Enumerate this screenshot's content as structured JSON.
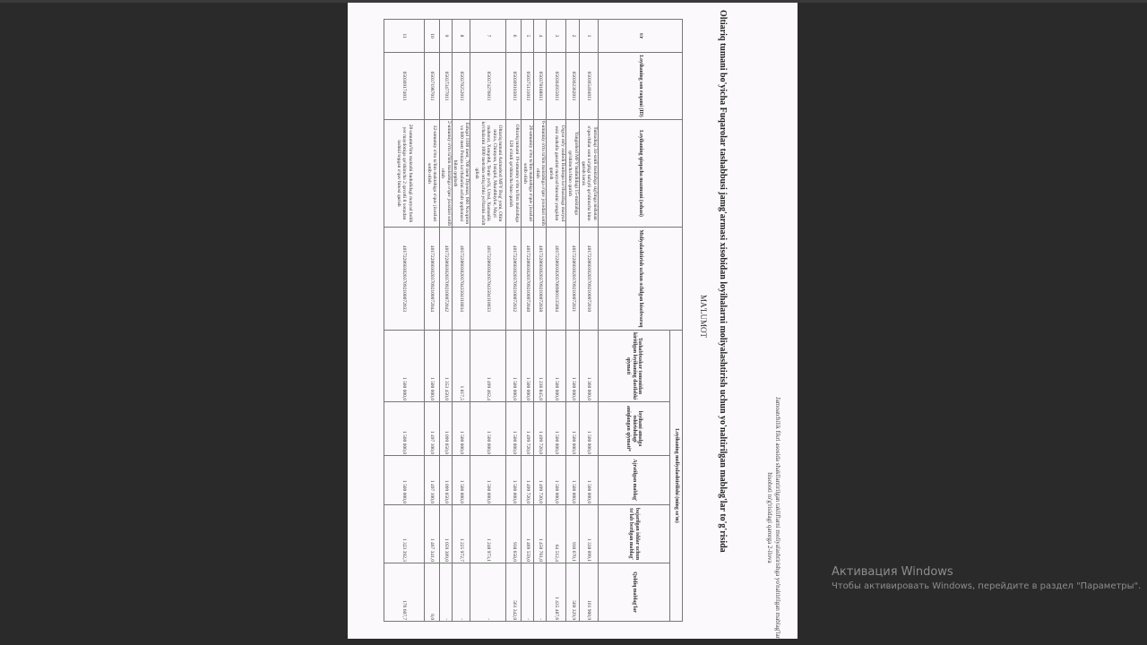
{
  "document": {
    "note": "Jamoatchilik fikri asosida shakllantirilgan takliflarni moliyalashtirishga yo'naltirilgan mablag'lar hisoboti to'g'risidagi qarorga 2-ilova",
    "title": "Oltiariq tumani bo'yicha Fuqarolar tashabbusi jamg'armasi xisobidan loyihalarni moliyalashtirish uchun yo'naltirilgan mablag'lar to'g'risida",
    "subtitle": "MA'LUMOT",
    "table": {
      "headers": {
        "num": "t/r",
        "id": "Loyihaning son raqami (ID)",
        "desc": "Loyihaning qisqacha mazmuni (sohasi)",
        "account": "Moliyalashtirish uchun ochilgan hisobvaraq",
        "group": "Loyihaning moliyalashtirilishi (ming so'm)",
        "initial": "Tashabbuskor tomonidan kiritilgan loyihaning dastlabki qiymati",
        "actual": "loyihani amalga oshirishdagi aniqlangan qiymati*",
        "allocated": "Ajratilgan mablag'",
        "paid": "bajarilgan ishlar uchun to'lab berilgan mablag'",
        "remaining": "Qoldiq mablag'lar"
      },
      "rows": [
        {
          "num": "1",
          "id": "050365494011",
          "desc": "Turnaduqi 34-sonli maktabga sig'imga nisbatan o'quvchilar soni ko'pligi tufayli qo'shimcha bino qurish kerak",
          "account": "401722860302037092100072010",
          "initial": "1 360 000,0",
          "actual": "1 500 000,0",
          "allocated": "1 500 000,0",
          "paid": "1 338 099,1",
          "remaining": "161 900,9"
        },
        {
          "num": "2",
          "id": "050362362011",
          "desc": "Yangiobod MFY hududidagi 15-maktabga qo'shimcha bino qurish",
          "account": "401722860302037092100072031",
          "initial": "1 500 000,0",
          "actual": "1 500 000,0",
          "allocated": "1 500 000,0",
          "paid": "930 670,1",
          "remaining": "569 329,9"
        },
        {
          "num": "3",
          "id": "050364935011",
          "desc": "Oqyar mfy xudodi Baritopa ko'chasidagi maryad eski mahalla guzarini maryad binosini yangidan qurish",
          "account": "401722860302037089801135004",
          "initial": "1 500 000,0",
          "actual": "1 500 000,0",
          "allocated": "1 500 000,0",
          "paid": "64 512,4",
          "remaining": "1 435 487,6"
        },
        {
          "num": "4",
          "id": "050378188011",
          "desc": "6-umumiy o'rta ta'lim maktabiga o'quv joxodari sotib olish",
          "account": "401722860302037092100072038",
          "initial": "1 236 845,0",
          "actual": "1 499 720,0",
          "allocated": "1 499 720,0",
          "paid": "1 450 761,0",
          "remaining": "-"
        },
        {
          "num": "5",
          "id": "050375131011",
          "desc": "26-umumiy o'rta ta'lim maktabiga o'quv jixozlari sotib olish",
          "account": "401722860302037092100072040",
          "initial": "1 500 000,0",
          "actual": "1 499 720,0",
          "allocated": "1 499 720,0",
          "paid": "1 469 559,0",
          "remaining": "-"
        },
        {
          "num": "6",
          "id": "050369103011",
          "desc": "Oltiariq tumani 19-umumiy o'rta ta'lim maktabiga 120 o'rinli qo'shimcha bino qurish",
          "account": "401722860302037092100072032",
          "initial": "1 500 000,0",
          "actual": "1 500 000,0",
          "allocated": "1 500 000,0",
          "paid": "938 658,0",
          "remaining": "561 342,0"
        },
        {
          "num": "7",
          "id": "050374276011",
          "desc": "Oltiariq tumani Azimobod MFY Bog' yoni, Olim mirza, Chimyon, Istiqlol, Murabbiylar, Mayi mahorat, Xonqobil, Temir yo'li, Urtal, Xumanlik ko'chalarini 1000 metrdan ortiq ichki yo'llarini asfalt qilish",
          "account": "401722860302037043504118033",
          "initial": "1 499 462,4",
          "actual": "1 500 000,0",
          "allocated": "1 500 000,0",
          "paid": "1 248 973,1",
          "remaining": "-"
        },
        {
          "num": "8",
          "id": "050370252011",
          "desc": "Eshqol 1100 metr, 700 metr Diyonat, 600 Navqiron va 600 metr Pokiza ko'chalarini asfalt qoplamasi bilan qoplash",
          "account": "401722860302037043504118034",
          "initial": "1 817,5",
          "actual": "1 500 000,0",
          "allocated": "1 500 000,0",
          "paid": "1 225 972,7",
          "remaining": "-"
        },
        {
          "num": "9",
          "id": "050373477011",
          "desc": "2-umumiy o'rta ta'lim maktabiga o'quv jixozlari sotib olish",
          "account": "401722860302037092100072042",
          "initial": "1 353 450,0",
          "actual": "1 099 050,0",
          "allocated": "1 099 050,0",
          "paid": "1 059 309,0",
          "remaining": "-"
        },
        {
          "num": "10",
          "id": "050371987011",
          "desc": "32-umumiy o'rta ta'lim maktabiga o'quv jixozlari sotib olish",
          "account": "401722860302037092100072044",
          "initial": "1 500 000,0",
          "actual": "1 497 100,0",
          "allocated": "1 497 100,0",
          "paid": "1 467 341,0",
          "remaining": "0,0"
        },
        {
          "num": "11",
          "id": "050369174011",
          "desc": "20-umumta'lim maktabi hududidagi maryad bolib yer maydoniga qo'shimcha 2 qavatli 8 xonadan tashkil topgan o'quv binosi qurish",
          "account": "401722860302037092100072033",
          "initial": "1 500 000,0",
          "actual": "1 500 000,0",
          "allocated": "1 500 000,0",
          "paid": "1 323 392,3",
          "remaining": "176 607,7"
        }
      ]
    }
  },
  "watermark": {
    "title": "Активация Windows",
    "text": "Чтобы активировать Windows, перейдите в раздел \"Параметры\"."
  }
}
